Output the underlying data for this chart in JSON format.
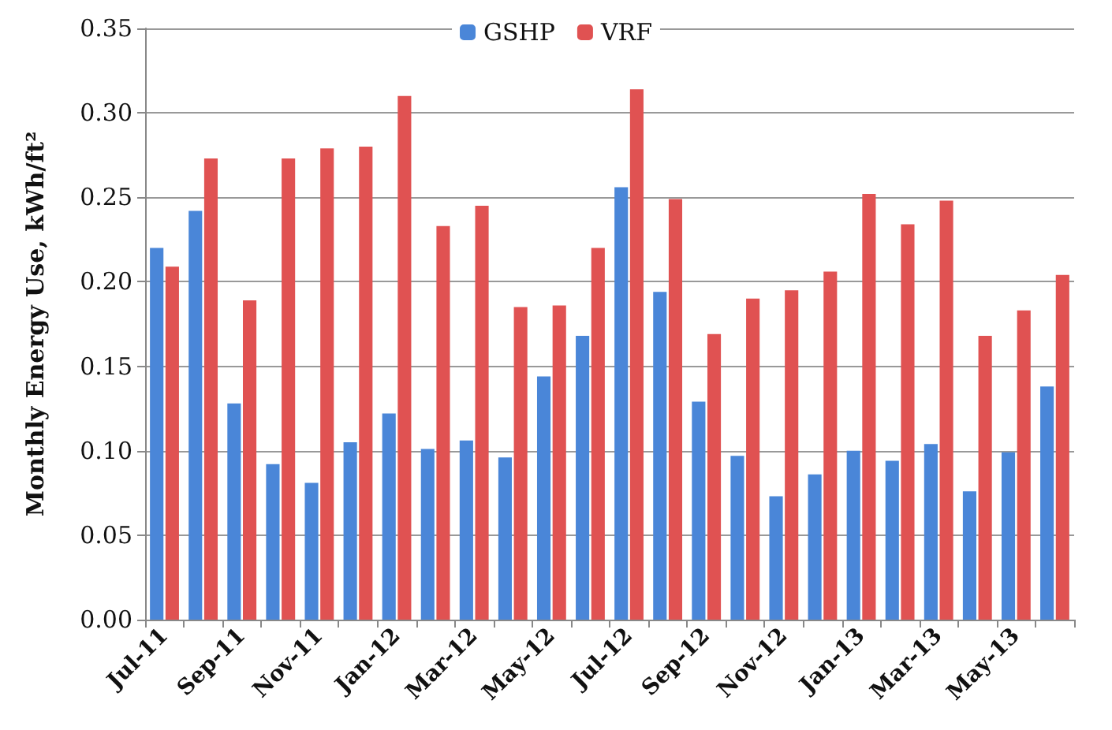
{
  "chart_data": {
    "type": "bar",
    "ylabel": "Monthly Energy Use, kWh/ft²",
    "categories": [
      "Jul-11",
      null,
      "Sep-11",
      null,
      "Nov-11",
      null,
      "Jan-12",
      null,
      "Mar-12",
      null,
      "May-12",
      null,
      "Jul-12",
      null,
      "Sep-12",
      null,
      "Nov-12",
      null,
      "Jan-13",
      null,
      "Mar-13",
      null,
      "May-13",
      null
    ],
    "series": [
      {
        "name": "GSHP",
        "color": "#4a86d8",
        "values": [
          0.22,
          0.242,
          0.128,
          0.092,
          0.081,
          0.105,
          0.122,
          0.101,
          0.106,
          0.096,
          0.144,
          0.168,
          0.256,
          0.194,
          0.129,
          0.097,
          0.073,
          0.086,
          0.1,
          0.094,
          0.104,
          0.076,
          0.099,
          0.138
        ]
      },
      {
        "name": "VRF",
        "color": "#e05252",
        "values": [
          0.209,
          0.273,
          0.189,
          0.273,
          0.279,
          0.28,
          0.31,
          0.233,
          0.245,
          0.185,
          0.186,
          0.22,
          0.314,
          0.249,
          0.169,
          0.19,
          0.195,
          0.206,
          0.252,
          0.234,
          0.248,
          0.168,
          0.183,
          0.204
        ]
      }
    ],
    "ylim": [
      0,
      0.35
    ],
    "yticks": [
      {
        "value": 0,
        "label": "0.00"
      },
      {
        "value": 0.05,
        "label": "0.05"
      },
      {
        "value": 0.1,
        "label": "0.10"
      },
      {
        "value": 0.15,
        "label": "0.15"
      },
      {
        "value": 0.2,
        "label": "0.20"
      },
      {
        "value": 0.25,
        "label": "0.25"
      },
      {
        "value": 0.3,
        "label": "0.30"
      },
      {
        "value": 0.35,
        "label": "0.35"
      }
    ],
    "grid": "y",
    "legend": "top"
  }
}
